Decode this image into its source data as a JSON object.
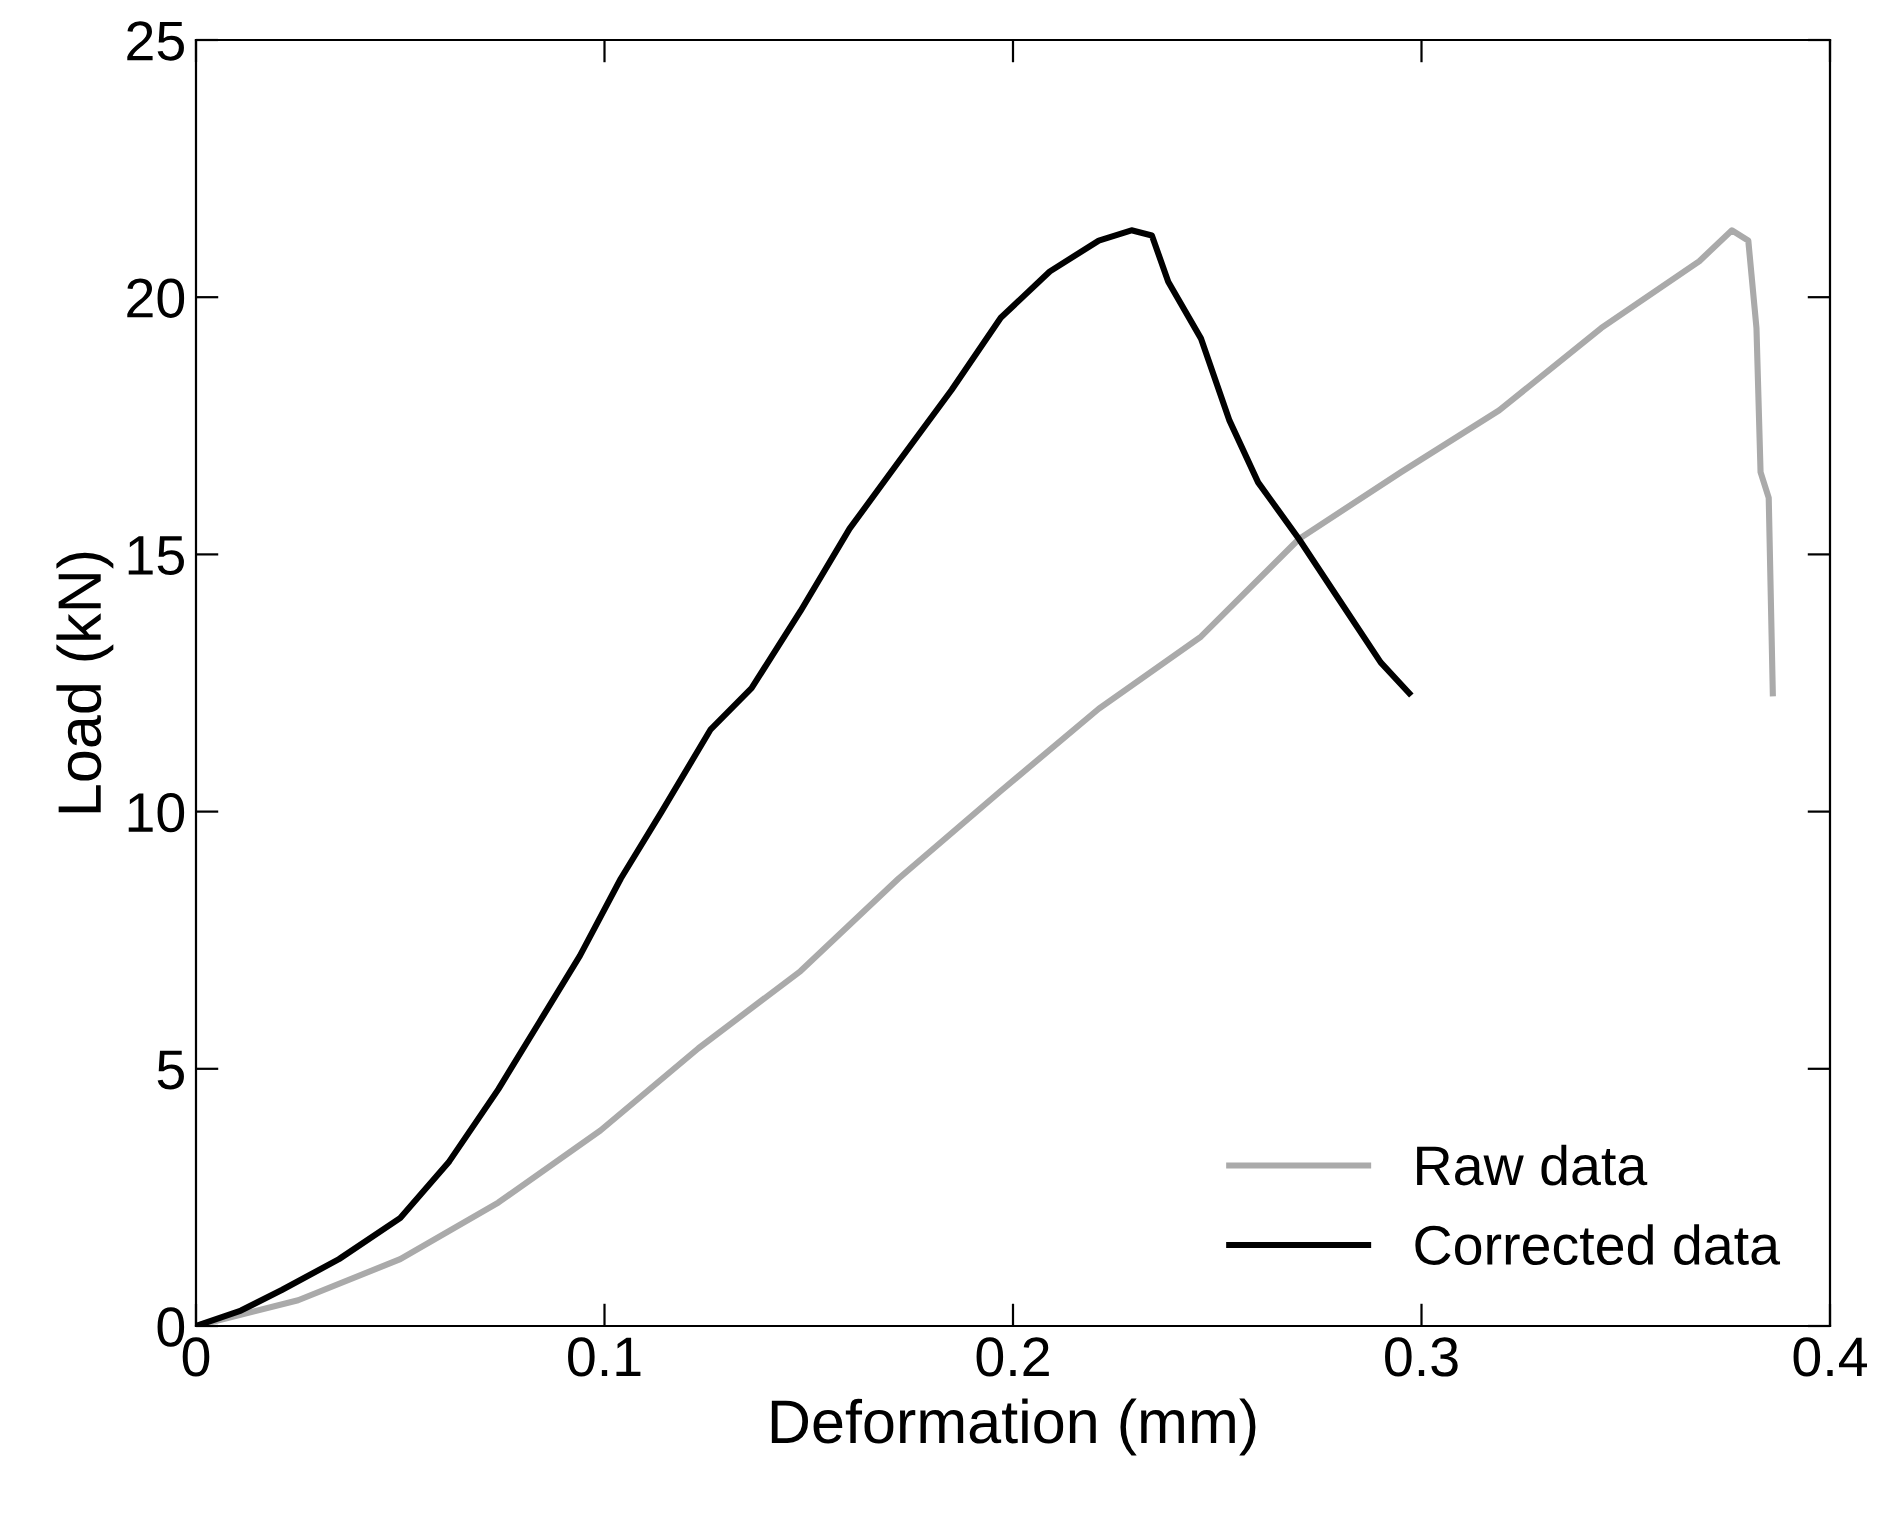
{
  "chart_data": {
    "type": "line",
    "xlabel": "Deformation (mm)",
    "ylabel": "Load (kN)",
    "xlim": [
      0,
      0.4
    ],
    "ylim": [
      0,
      25
    ],
    "xticks": [
      0,
      0.1,
      0.2,
      0.3,
      0.4
    ],
    "yticks": [
      0,
      5,
      10,
      15,
      20,
      25
    ],
    "grid": false,
    "legend": "bottom right",
    "marker": "none",
    "line_style": "solid",
    "series": [
      {
        "name": "Raw data",
        "color": "#aaaaaa",
        "x": [
          0,
          0.025,
          0.05,
          0.074,
          0.099,
          0.123,
          0.148,
          0.172,
          0.197,
          0.221,
          0.246,
          0.27,
          0.295,
          0.319,
          0.344,
          0.368,
          0.376,
          0.38,
          0.382,
          0.383,
          0.385,
          0.386
        ],
        "values": [
          0,
          0.5,
          1.3,
          2.4,
          3.8,
          5.4,
          6.9,
          8.7,
          10.4,
          12.0,
          13.4,
          15.3,
          16.6,
          17.8,
          19.4,
          20.7,
          21.3,
          21.1,
          19.4,
          16.6,
          16.1,
          12.3
        ]
      },
      {
        "name": "Corrected data",
        "color": "#000000",
        "x": [
          0,
          0.011,
          0.021,
          0.035,
          0.05,
          0.062,
          0.074,
          0.084,
          0.094,
          0.104,
          0.114,
          0.126,
          0.136,
          0.148,
          0.16,
          0.172,
          0.185,
          0.197,
          0.209,
          0.221,
          0.229,
          0.234,
          0.238,
          0.246,
          0.253,
          0.26,
          0.27,
          0.28,
          0.29,
          0.297
        ],
        "values": [
          0,
          0.3,
          0.7,
          1.3,
          2.1,
          3.2,
          4.6,
          5.9,
          7.2,
          8.7,
          10.0,
          11.6,
          12.4,
          13.9,
          15.5,
          16.8,
          18.2,
          19.6,
          20.5,
          21.1,
          21.3,
          21.2,
          20.3,
          19.2,
          17.6,
          16.4,
          15.3,
          14.1,
          12.9,
          12.3
        ]
      }
    ]
  }
}
